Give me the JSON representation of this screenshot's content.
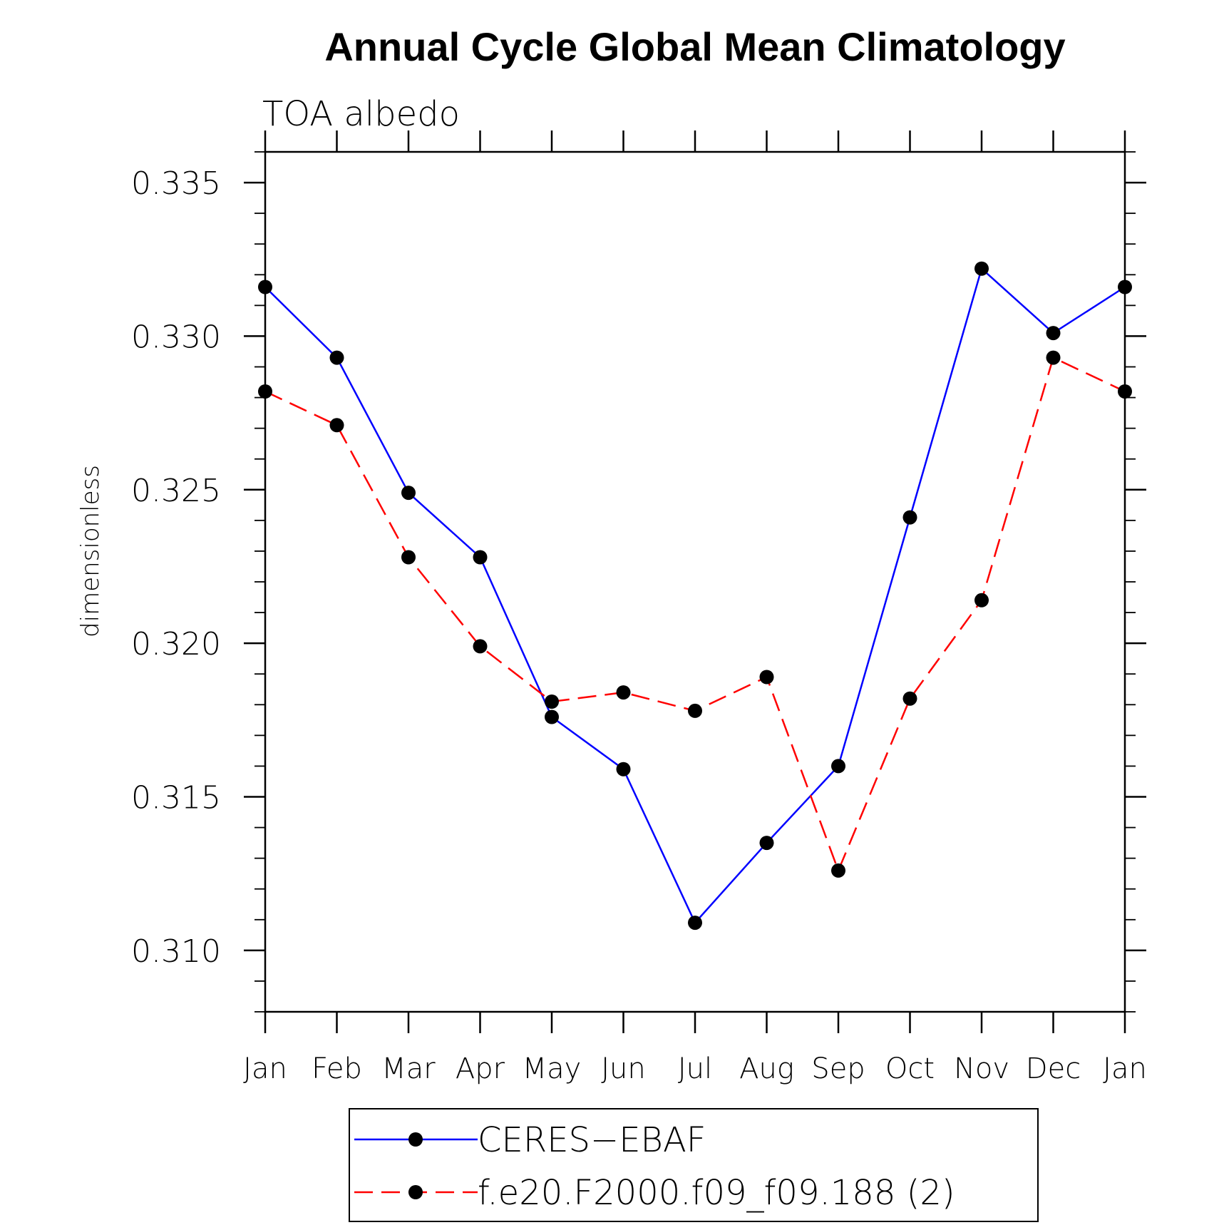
{
  "chart_data": {
    "type": "line",
    "title": "Annual Cycle Global Mean Climatology",
    "subtitle": "TOA albedo",
    "ylabel": "dimensionless",
    "xlabel": "",
    "categories": [
      "Jan",
      "Feb",
      "Mar",
      "Apr",
      "May",
      "Jun",
      "Jul",
      "Aug",
      "Sep",
      "Oct",
      "Nov",
      "Dec",
      "Jan"
    ],
    "ylim": [
      0.308,
      0.336
    ],
    "yticks": [
      0.31,
      0.315,
      0.32,
      0.325,
      0.33,
      0.335
    ],
    "ytick_labels": [
      "0.310",
      "0.315",
      "0.320",
      "0.325",
      "0.330",
      "0.335"
    ],
    "legend_position": "bottom-center",
    "series": [
      {
        "name": "CERES−EBAF",
        "color": "#0000ff",
        "dash": "solid",
        "values": [
          0.3316,
          0.3293,
          0.3249,
          0.3228,
          0.3176,
          0.3159,
          0.3109,
          0.3135,
          0.316,
          0.3241,
          0.3322,
          0.3301,
          0.3316
        ]
      },
      {
        "name": "f.e20.F2000.f09_f09.188 (2)",
        "color": "#ff0000",
        "dash": "dashed",
        "values": [
          0.3282,
          0.3271,
          0.3228,
          0.3199,
          0.3181,
          0.3184,
          0.3178,
          0.3189,
          0.3126,
          0.3182,
          0.3214,
          0.3293,
          0.3282
        ]
      }
    ]
  }
}
